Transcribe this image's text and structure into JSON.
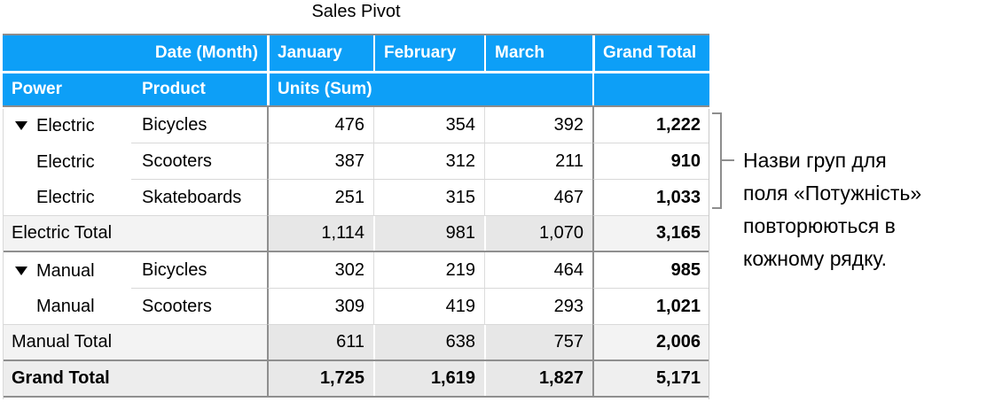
{
  "title": "Sales Pivot",
  "pivot": {
    "corner_label": "Date (Month)",
    "row_field1": "Power",
    "row_field2": "Product",
    "values_label": "Units (Sum)",
    "months": {
      "jan": "January",
      "feb": "February",
      "mar": "March"
    },
    "grand_total_col": "Grand Total",
    "rows": [
      {
        "power": "Electric",
        "product": "Bicycles",
        "jan": "476",
        "feb": "354",
        "mar": "392",
        "total": "1,222"
      },
      {
        "power": "Electric",
        "product": "Scooters",
        "jan": "387",
        "feb": "312",
        "mar": "211",
        "total": "910"
      },
      {
        "power": "Electric",
        "product": "Skateboards",
        "jan": "251",
        "feb": "315",
        "mar": "467",
        "total": "1,033"
      },
      {
        "label": "Electric Total",
        "jan": "1,114",
        "feb": "981",
        "mar": "1,070",
        "total": "3,165"
      },
      {
        "power": "Manual",
        "product": "Bicycles",
        "jan": "302",
        "feb": "219",
        "mar": "464",
        "total": "985"
      },
      {
        "power": "Manual",
        "product": "Scooters",
        "jan": "309",
        "feb": "419",
        "mar": "293",
        "total": "1,021"
      },
      {
        "label": "Manual Total",
        "jan": "611",
        "feb": "638",
        "mar": "757",
        "total": "2,006"
      },
      {
        "label": "Grand Total",
        "jan": "1,725",
        "feb": "1,619",
        "mar": "1,827",
        "total": "5,171"
      }
    ]
  },
  "annotation": {
    "lines": [
      "Назви груп для",
      "поля «Потужність»",
      "повторюються в",
      "кожному рядку."
    ]
  },
  "colors": {
    "header_blue": "#0d9ff7",
    "header_text": "#ffffff",
    "dark_border": "#8f8f8f",
    "light_border": "#d9d9d9",
    "subtotal_cell_bg": "#e7e7e7",
    "subtotal_label_bg": "#f3f3f3",
    "grand_row_bg": "#e8e8e8",
    "bracket_gray": "#8e8e8e"
  }
}
